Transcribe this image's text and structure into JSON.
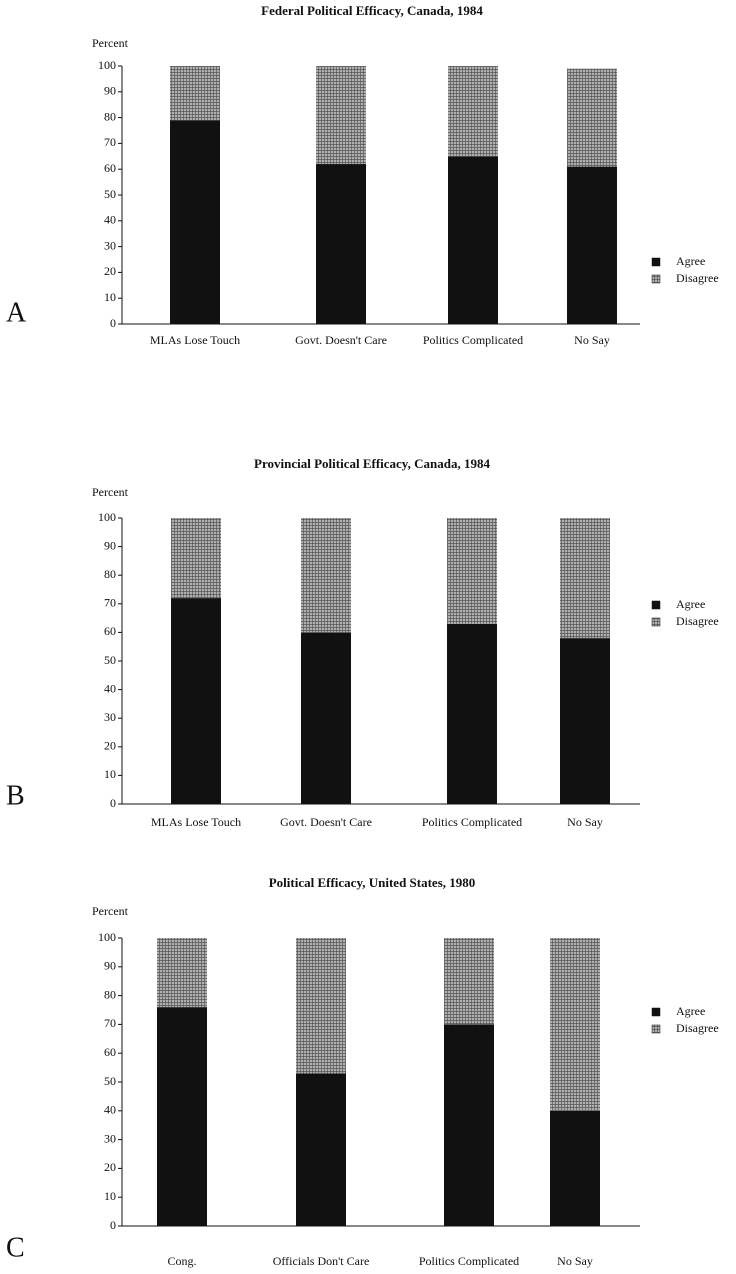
{
  "chart_data": [
    {
      "type": "stacked_bar",
      "panel_label": "A",
      "title": "Federal Political Efficacy, Canada, 1984",
      "y_label": "Percent",
      "categories": [
        "MLAs Lose Touch",
        "Govt. Doesn't Care",
        "Politics Complicated",
        "No Say"
      ],
      "series": [
        {
          "name": "Agree",
          "color": "#111111",
          "values": [
            79,
            62,
            65,
            61
          ]
        },
        {
          "name": "Disagree",
          "color": "#b0b0b0",
          "values": [
            21,
            38,
            35,
            38
          ]
        }
      ],
      "ylim": [
        0,
        100
      ],
      "yticks": [
        0,
        10,
        20,
        30,
        40,
        50,
        60,
        70,
        80,
        90,
        100
      ],
      "legend": "right"
    },
    {
      "type": "stacked_bar",
      "panel_label": "B",
      "title": "Provincial Political Efficacy, Canada, 1984",
      "y_label": "Percent",
      "categories": [
        "MLAs Lose Touch",
        "Govt. Doesn't Care",
        "Politics Complicated",
        "No Say"
      ],
      "series": [
        {
          "name": "Agree",
          "color": "#111111",
          "values": [
            72,
            60,
            63,
            58
          ]
        },
        {
          "name": "Disagree",
          "color": "#b0b0b0",
          "values": [
            28,
            40,
            37,
            42
          ]
        }
      ],
      "ylim": [
        0,
        100
      ],
      "yticks": [
        0,
        10,
        20,
        30,
        40,
        50,
        60,
        70,
        80,
        90,
        100
      ],
      "legend": "right"
    },
    {
      "type": "stacked_bar",
      "panel_label": "C",
      "title": "Political Efficacy, United States, 1980",
      "y_label": "Percent",
      "categories": [
        "Cong.",
        "Officials Don't Care",
        "Politics Complicated",
        "No Say"
      ],
      "series": [
        {
          "name": "Agree",
          "color": "#111111",
          "values": [
            76,
            53,
            70,
            40
          ]
        },
        {
          "name": "Disagree",
          "color": "#b0b0b0",
          "values": [
            24,
            47,
            30,
            60
          ]
        }
      ],
      "ylim": [
        0,
        100
      ],
      "yticks": [
        0,
        10,
        20,
        30,
        40,
        50,
        60,
        70,
        80,
        90,
        100
      ],
      "legend": "right"
    }
  ]
}
